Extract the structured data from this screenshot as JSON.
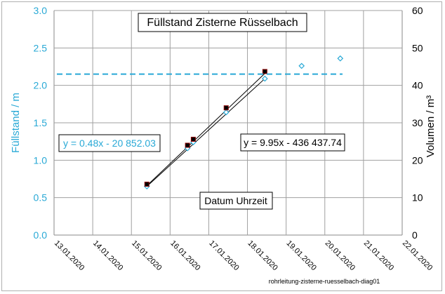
{
  "chart_data": {
    "type": "scatter",
    "title": "Füllstand Zisterne Rüsselbach",
    "ylabel_left": "Füllstand / m",
    "ylabel_right": "Volumen / m³",
    "xlabel": "Datum Uhrzeit",
    "footer": "rohrleitung-zisterne-ruesselbach-diag01",
    "ylim_left": [
      0,
      3
    ],
    "ylim_right": [
      0,
      60
    ],
    "xlim": [
      0,
      9
    ],
    "y_ticks_left": [
      "0.0",
      "0.5",
      "1.0",
      "1.5",
      "2.0",
      "2.5",
      "3.0"
    ],
    "y_ticks_right": [
      "0",
      "10",
      "20",
      "30",
      "40",
      "50",
      "60"
    ],
    "x_ticks": [
      "13.01.2020",
      "14.01.2020",
      "15.01.2020",
      "16.01.2020",
      "17.01.2020",
      "18.01.2020",
      "19.01.2020",
      "20.01.2020",
      "21.01.2020",
      "22.01.2020"
    ],
    "threshold_level": 2.15,
    "series": [
      {
        "name": "Füllstand",
        "axis": "left",
        "marker": "diamond",
        "color": "#29a9d6",
        "x": [
          2.4,
          3.45,
          3.6,
          4.45,
          5.45,
          6.4,
          7.4
        ],
        "y": [
          0.65,
          1.16,
          1.24,
          1.64,
          2.09,
          2.26,
          2.36
        ]
      },
      {
        "name": "Volumen",
        "axis": "right",
        "marker": "square",
        "color": "#000000",
        "x": [
          2.4,
          3.45,
          3.6,
          4.45,
          5.45
        ],
        "y": [
          13.6,
          24.0,
          25.6,
          34.0,
          43.7
        ]
      }
    ],
    "trendlines": [
      {
        "label": "y = 0.48x - 20 852.03",
        "axis": "left",
        "color": "#29a9d6",
        "x": [
          2.4,
          5.45
        ],
        "y": [
          0.65,
          2.09
        ]
      },
      {
        "label": "y = 9.95x - 436 437.74",
        "axis": "right",
        "color": "#000000",
        "x": [
          2.4,
          5.45
        ],
        "y": [
          13.2,
          43.2
        ]
      }
    ],
    "colors": {
      "accent": "#29a9d6",
      "grid": "#a0a0a0",
      "text": "#000000"
    }
  }
}
